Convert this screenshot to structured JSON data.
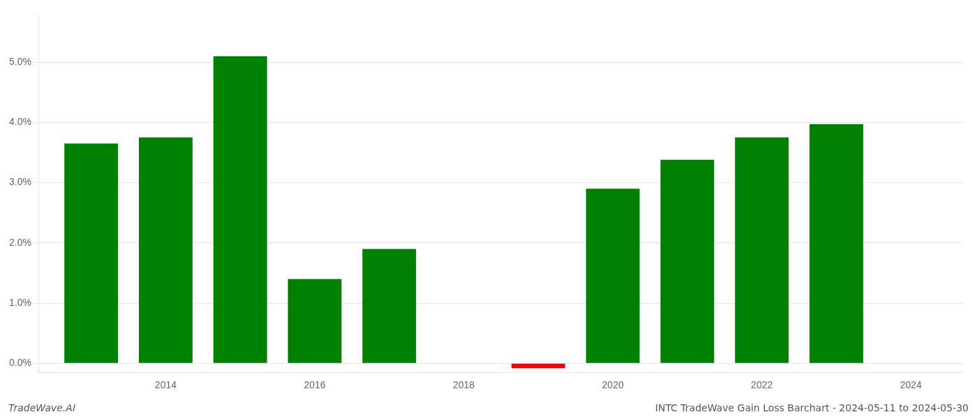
{
  "chart_data": {
    "type": "bar",
    "x": [
      2013,
      2014,
      2015,
      2016,
      2017,
      2019,
      2020,
      2021,
      2022,
      2023
    ],
    "values": [
      0.0365,
      0.0375,
      0.051,
      0.014,
      0.019,
      -0.0008,
      0.029,
      0.0338,
      0.0375,
      0.0397
    ],
    "colors": [
      "#008000",
      "#008000",
      "#008000",
      "#008000",
      "#008000",
      "#ff0000",
      "#008000",
      "#008000",
      "#008000",
      "#008000"
    ],
    "xlim": [
      2012.3,
      2024.7
    ],
    "xticks": [
      2014,
      2016,
      2018,
      2020,
      2022,
      2024
    ],
    "ylim": [
      -0.0015,
      0.058
    ],
    "yticks": [
      {
        "value": 0.0,
        "label": "0.0%"
      },
      {
        "value": 0.01,
        "label": "1.0%"
      },
      {
        "value": 0.02,
        "label": "2.0%"
      },
      {
        "value": 0.03,
        "label": "3.0%"
      },
      {
        "value": 0.04,
        "label": "4.0%"
      },
      {
        "value": 0.05,
        "label": "5.0%"
      }
    ],
    "grid": true,
    "annotations": [
      "TradeWave.AI",
      "INTC TradeWave Gain Loss Barchart - 2024-05-11 to 2024-05-30"
    ]
  }
}
